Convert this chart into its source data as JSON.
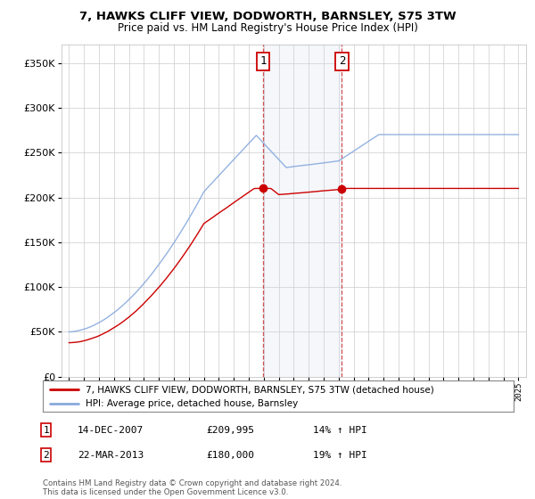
{
  "title": "7, HAWKS CLIFF VIEW, DODWORTH, BARNSLEY, S75 3TW",
  "subtitle": "Price paid vs. HM Land Registry's House Price Index (HPI)",
  "legend_line1": "7, HAWKS CLIFF VIEW, DODWORTH, BARNSLEY, S75 3TW (detached house)",
  "legend_line2": "HPI: Average price, detached house, Barnsley",
  "annotation1_label": "1",
  "annotation1_date": "14-DEC-2007",
  "annotation1_price": "£209,995",
  "annotation1_hpi": "14% ↑ HPI",
  "annotation2_label": "2",
  "annotation2_date": "22-MAR-2013",
  "annotation2_price": "£180,000",
  "annotation2_hpi": "19% ↑ HPI",
  "footnote": "Contains HM Land Registry data © Crown copyright and database right 2024.\nThis data is licensed under the Open Government Licence v3.0.",
  "house_color": "#cc0000",
  "hpi_color": "#88aadd",
  "marker1_year": 2007.95,
  "marker2_year": 2013.22,
  "ylim_min": 0,
  "ylim_max": 370000,
  "xlim_min": 1994.5,
  "xlim_max": 2025.5
}
